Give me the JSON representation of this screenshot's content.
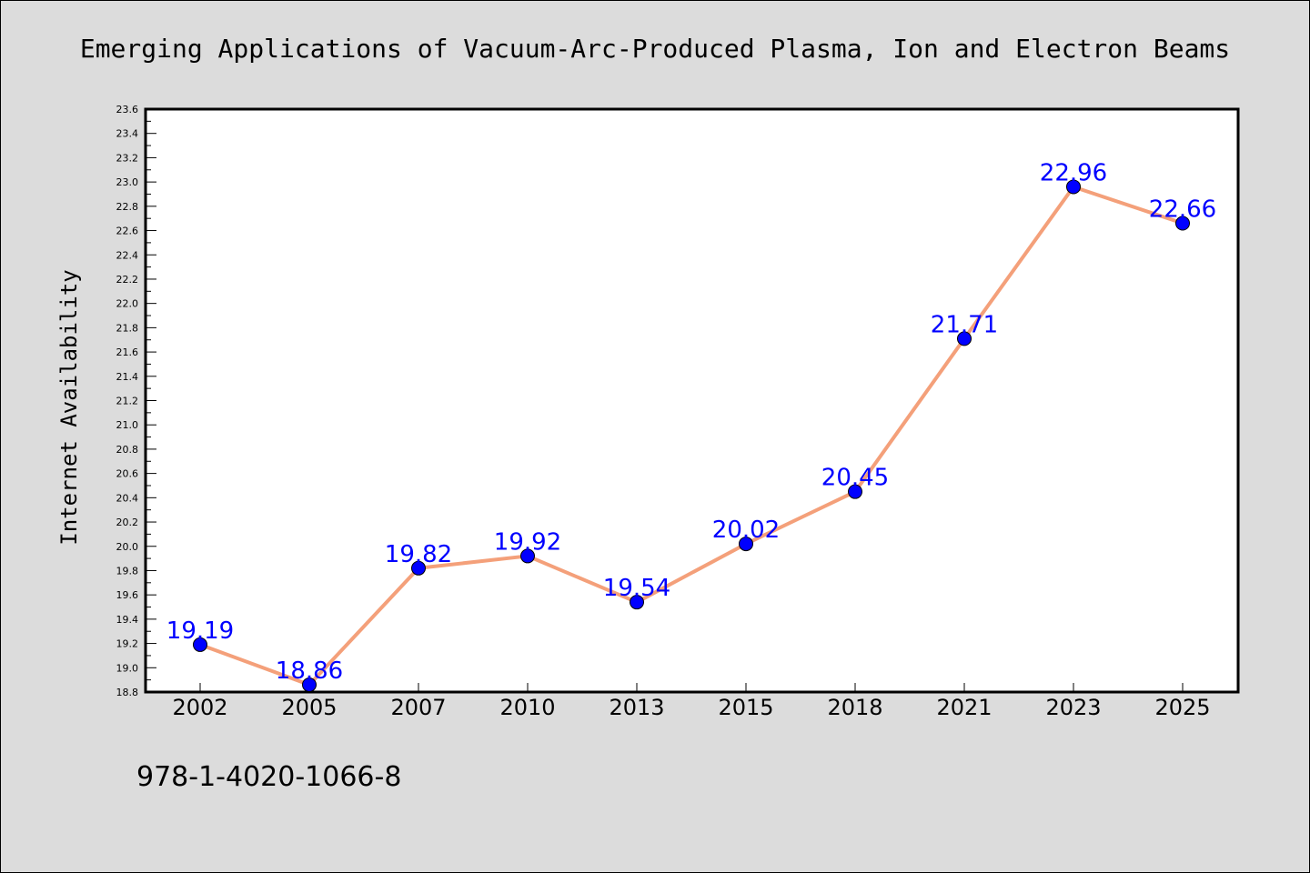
{
  "chart_data": {
    "type": "line",
    "title": "Emerging Applications of Vacuum-Arc-Produced Plasma, Ion and Electron Beams",
    "xlabel": "",
    "ylabel": "Internet Availability",
    "categories": [
      "2002",
      "2005",
      "2007",
      "2010",
      "2013",
      "2015",
      "2018",
      "2021",
      "2023",
      "2025"
    ],
    "series": [
      {
        "values": [
          19.19,
          18.86,
          19.82,
          19.92,
          19.54,
          20.02,
          20.45,
          21.71,
          22.96,
          22.66
        ]
      }
    ],
    "data_labels": [
      "19.19",
      "18.86",
      "19.82",
      "19.92",
      "19.54",
      "20.02",
      "20.45",
      "21.71",
      "22.96",
      "22.66"
    ],
    "ylim": [
      18.8,
      23.6
    ],
    "yticks": [
      "18.8",
      "19.0",
      "19.2",
      "19.4",
      "19.6",
      "19.8",
      "20.0",
      "20.2",
      "20.4",
      "20.6",
      "20.8",
      "21.0",
      "21.2",
      "21.4",
      "21.6",
      "21.8",
      "22.0",
      "22.2",
      "22.4",
      "22.6",
      "22.8",
      "23.0",
      "23.2",
      "23.4",
      "23.6"
    ],
    "grid": false,
    "legend": "none",
    "line_color": "#f4a07a",
    "marker_color": "#0000ff",
    "label_color": "#0000ff",
    "plot_background": "#ffffff",
    "figure_background": "#dcdcdc"
  },
  "footer": {
    "isbn": "978-1-4020-1066-8"
  }
}
